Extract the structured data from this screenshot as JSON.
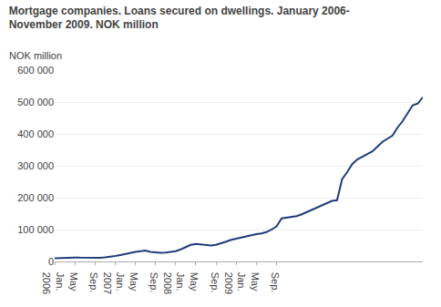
{
  "chart_data": {
    "type": "line",
    "title": "Mortgage companies. Loans secured on dwellings. January 2006-\nNovember 2009. NOK million",
    "ylabel": "NOK million",
    "color": "#1f3d7a",
    "grid": true,
    "ylim": [
      0,
      600000
    ],
    "yticks": [
      0,
      {
        "value": 100000,
        "label": "100 000"
      },
      {
        "value": 200000,
        "label": "200 000"
      },
      {
        "value": 300000,
        "label": "300 000"
      },
      {
        "value": 400000,
        "label": "400 000"
      },
      {
        "value": 500000,
        "label": "500 000"
      },
      {
        "value": 600000,
        "label": "600 000"
      }
    ],
    "categories": [
      "Jan.\n2006",
      null,
      null,
      null,
      "May",
      null,
      null,
      null,
      "Sep.",
      null,
      null,
      null,
      "Jan.\n2007",
      null,
      null,
      null,
      "May",
      null,
      null,
      null,
      "Sep.",
      null,
      null,
      null,
      "Jan.\n2008",
      null,
      null,
      null,
      "May",
      null,
      null,
      null,
      "Sep.",
      null,
      null,
      null,
      "Jan.\n2009",
      null,
      null,
      null,
      "May",
      null,
      null,
      null,
      "Sep.",
      null,
      null,
      null,
      null,
      null,
      null,
      null,
      null,
      null,
      null,
      null,
      null,
      null,
      null,
      null,
      null,
      null,
      null,
      null,
      null,
      null,
      null,
      null,
      null,
      null,
      null,
      null,
      null,
      null
    ],
    "values": [
      10000,
      11000,
      12000,
      13000,
      12500,
      12000,
      11500,
      11000,
      11000,
      11500,
      13000,
      14000,
      17000,
      20000,
      24000,
      28000,
      30000,
      32000,
      34000,
      30000,
      28000,
      27000,
      28000,
      30000,
      32000,
      38000,
      45000,
      52000,
      55000,
      53000,
      52000,
      50000,
      52000,
      56000,
      62000,
      68000,
      72000,
      76000,
      80000,
      84000,
      86000,
      88000,
      92000,
      100000,
      110000,
      135000,
      138000,
      140000,
      142000,
      148000,
      155000,
      162000,
      170000,
      178000,
      185000,
      190000,
      192000,
      258000,
      280000,
      305000,
      320000,
      328000,
      335000,
      345000,
      360000,
      375000,
      385000,
      395000,
      420000,
      440000,
      465000,
      490000,
      495000,
      515000
    ]
  }
}
